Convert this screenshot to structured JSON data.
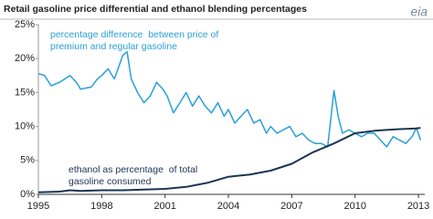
{
  "chart_data": {
    "type": "line",
    "title": "Retail gasoline price differential and ethanol blending percentages",
    "logo": "eia",
    "annotations": [
      {
        "lines": [
          "percentage difference  between price of",
          "premium and regular gasoline"
        ],
        "color": "#2a9fd8"
      },
      {
        "lines": [
          "ethanol as percentage  of total",
          "gasoline consumed"
        ],
        "color": "#1b3553"
      }
    ],
    "xlim": [
      1995,
      2013.3
    ],
    "xticks": [
      1995,
      1998,
      2001,
      2004,
      2007,
      2010,
      2013
    ],
    "ylim": [
      0,
      25
    ],
    "yticks": [
      {
        "value": 0,
        "label": "0%"
      },
      {
        "value": 5,
        "label": "5%"
      },
      {
        "value": 10,
        "label": "10%"
      },
      {
        "value": 15,
        "label": "15%"
      },
      {
        "value": 20,
        "label": "20%"
      },
      {
        "value": 25,
        "label": "25%"
      }
    ],
    "grid": false,
    "series": [
      {
        "color": "#2a9fd8",
        "x": [
          1995,
          1995.3,
          1995.6,
          1996,
          1996.5,
          1996.8,
          1997,
          1997.5,
          1997.8,
          1998,
          1998.3,
          1998.6,
          1999,
          1999.2,
          1999.4,
          1999.7,
          2000,
          2000.3,
          2000.6,
          2000.9,
          2001.1,
          2001.4,
          2001.7,
          2002,
          2002.3,
          2002.6,
          2002.9,
          2003.2,
          2003.5,
          2003.8,
          2004,
          2004.3,
          2004.6,
          2004.9,
          2005.2,
          2005.5,
          2005.8,
          2006,
          2006.3,
          2006.6,
          2006.9,
          2007.2,
          2007.5,
          2007.8,
          2008.1,
          2008.4,
          2008.7,
          2009,
          2009.2,
          2009.4,
          2009.7,
          2010,
          2010.3,
          2010.6,
          2010.9,
          2011.2,
          2011.5,
          2011.8,
          2012.1,
          2012.4,
          2012.7,
          2012.9,
          2013.1
        ],
        "values": [
          17.8,
          17.5,
          16,
          16.5,
          17.5,
          16.5,
          15.5,
          15.8,
          17,
          17.5,
          18.5,
          17,
          20.5,
          21,
          17,
          15,
          13.5,
          14.5,
          16.5,
          15.5,
          14.5,
          12,
          13.5,
          15,
          13,
          14.5,
          13,
          12,
          13.5,
          11.5,
          12.5,
          10.5,
          11.5,
          12.5,
          10.5,
          11,
          9,
          10,
          9,
          9.5,
          10,
          8.5,
          9,
          8,
          7.5,
          7.5,
          7,
          15.3,
          11.5,
          9,
          9.5,
          9,
          8.5,
          9,
          9,
          8,
          7,
          8.5,
          8,
          7.5,
          8.5,
          9.8,
          8
        ]
      },
      {
        "color": "#1b3553",
        "x": [
          1995,
          1996,
          1996.5,
          1997,
          1998,
          1999,
          2000,
          2001,
          2002,
          2003,
          2004,
          2005,
          2006,
          2007,
          2008,
          2009,
          2010,
          2011,
          2012,
          2012.9,
          2013.1
        ],
        "values": [
          0.3,
          0.4,
          0.6,
          0.5,
          0.6,
          0.6,
          0.7,
          0.8,
          1.1,
          1.7,
          2.6,
          2.9,
          3.5,
          4.5,
          6.2,
          7.5,
          9,
          9.4,
          9.6,
          9.7,
          9.8
        ]
      }
    ]
  }
}
